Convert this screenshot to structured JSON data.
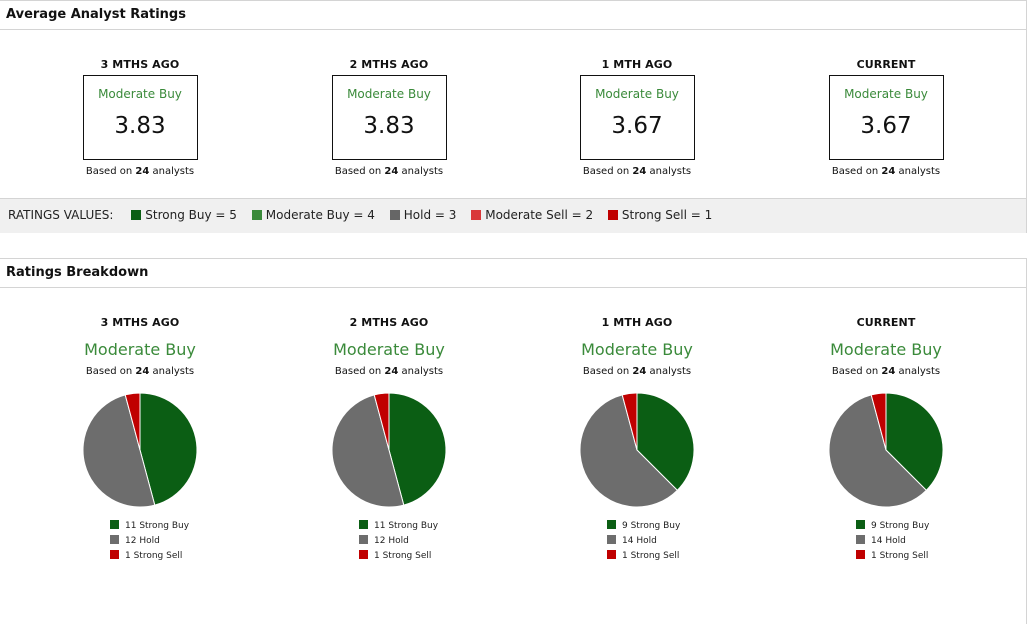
{
  "avg": {
    "title": "Average Analyst Ratings",
    "based_prefix": "Based on",
    "analysts_word": "analysts",
    "columns": [
      {
        "period": "3 MTHS AGO",
        "rating": "Moderate Buy",
        "score": "3.83",
        "count": "24"
      },
      {
        "period": "2 MTHS AGO",
        "rating": "Moderate Buy",
        "score": "3.83",
        "count": "24"
      },
      {
        "period": "1 MTH AGO",
        "rating": "Moderate Buy",
        "score": "3.67",
        "count": "24"
      },
      {
        "period": "CURRENT",
        "rating": "Moderate Buy",
        "score": "3.67",
        "count": "24"
      }
    ]
  },
  "ratings_values": {
    "label": "RATINGS VALUES:",
    "items": [
      {
        "text": "Strong Buy = 5",
        "color": "#0b5e14"
      },
      {
        "text": "Moderate Buy = 4",
        "color": "#3a8a3a"
      },
      {
        "text": "Hold = 3",
        "color": "#666666"
      },
      {
        "text": "Moderate Sell = 2",
        "color": "#d9383a"
      },
      {
        "text": "Strong Sell = 1",
        "color": "#c00000"
      }
    ]
  },
  "breakdown": {
    "title": "Ratings Breakdown",
    "columns": [
      {
        "period": "3 MTHS AGO",
        "rating": "Moderate Buy",
        "count": "24",
        "slices": [
          {
            "label": "11 Strong Buy",
            "value": 11,
            "color": "#0b5e14"
          },
          {
            "label": "12 Hold",
            "value": 12,
            "color": "#6d6d6d"
          },
          {
            "label": "1 Strong Sell",
            "value": 1,
            "color": "#c00000"
          }
        ]
      },
      {
        "period": "2 MTHS AGO",
        "rating": "Moderate Buy",
        "count": "24",
        "slices": [
          {
            "label": "11 Strong Buy",
            "value": 11,
            "color": "#0b5e14"
          },
          {
            "label": "12 Hold",
            "value": 12,
            "color": "#6d6d6d"
          },
          {
            "label": "1 Strong Sell",
            "value": 1,
            "color": "#c00000"
          }
        ]
      },
      {
        "period": "1 MTH AGO",
        "rating": "Moderate Buy",
        "count": "24",
        "slices": [
          {
            "label": "9 Strong Buy",
            "value": 9,
            "color": "#0b5e14"
          },
          {
            "label": "14 Hold",
            "value": 14,
            "color": "#6d6d6d"
          },
          {
            "label": "1 Strong Sell",
            "value": 1,
            "color": "#c00000"
          }
        ]
      },
      {
        "period": "CURRENT",
        "rating": "Moderate Buy",
        "count": "24",
        "slices": [
          {
            "label": "9 Strong Buy",
            "value": 9,
            "color": "#0b5e14"
          },
          {
            "label": "14 Hold",
            "value": 14,
            "color": "#6d6d6d"
          },
          {
            "label": "1 Strong Sell",
            "value": 1,
            "color": "#c00000"
          }
        ]
      }
    ]
  }
}
